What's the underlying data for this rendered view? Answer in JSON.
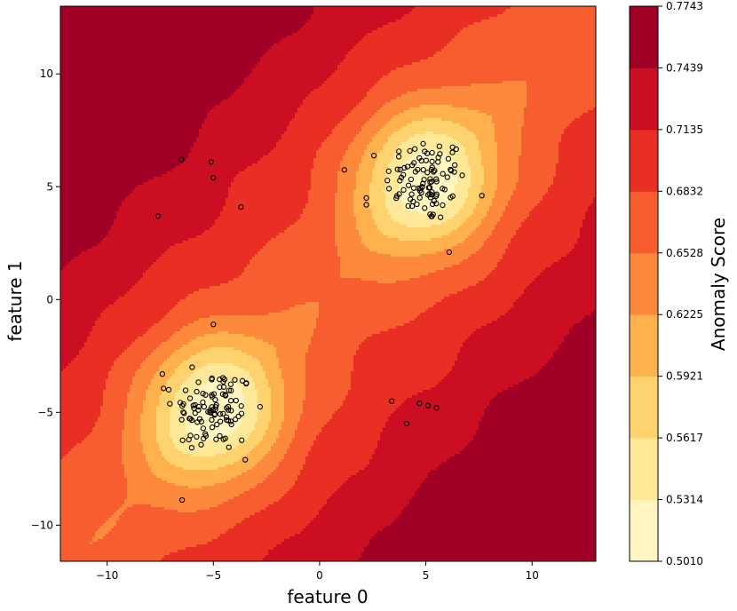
{
  "chart_data": {
    "type": "heatmap",
    "subtype": "filled-contour-with-scatter",
    "xlabel": "feature 0",
    "ylabel": "feature 1",
    "xlim": [
      -12.2,
      13
    ],
    "ylim": [
      -11.6,
      13.0
    ],
    "x_ticks": [
      -10,
      -5,
      0,
      5,
      10
    ],
    "x_tick_labels": [
      "−10",
      "−5",
      "0",
      "5",
      "10"
    ],
    "y_ticks": [
      -10,
      -5,
      0,
      5,
      10
    ],
    "y_tick_labels": [
      "−10",
      "−5",
      "0",
      "5",
      "10"
    ],
    "grid": false,
    "colorbar": {
      "label": "Anomaly Score",
      "levels": [
        0.501,
        0.5314,
        0.5617,
        0.5921,
        0.6225,
        0.6528,
        0.6832,
        0.7135,
        0.7439,
        0.7743
      ],
      "tick_labels": [
        "0.5010",
        "0.5314",
        "0.5617",
        "0.5921",
        "0.6225",
        "0.6528",
        "0.6832",
        "0.7135",
        "0.7439",
        "0.7743"
      ],
      "colors": [
        "#fff5c1",
        "#ffe999",
        "#fed36f",
        "#feb14c",
        "#fd8a3c",
        "#f85d2f",
        "#e92e23",
        "#cc0e23",
        "#a10026"
      ]
    },
    "cluster_centers": [
      [
        5.0,
        5.3
      ],
      [
        -5.0,
        -4.9
      ]
    ],
    "scatter": {
      "marker": "circle",
      "edgecolor": "#000000",
      "facecolor": "none",
      "outliers": [
        [
          -6.5,
          6.2
        ],
        [
          -5.1,
          6.1
        ],
        [
          -5.0,
          5.4
        ],
        [
          -3.7,
          4.1
        ],
        [
          -7.6,
          3.7
        ],
        [
          -5.0,
          -1.1
        ],
        [
          -7.4,
          -3.3
        ],
        [
          -7.1,
          -4.0
        ],
        [
          -6.0,
          -3.0
        ],
        [
          -3.5,
          -7.1
        ],
        [
          2.2,
          4.5
        ],
        [
          2.2,
          4.2
        ],
        [
          6.1,
          2.1
        ],
        [
          3.4,
          -4.5
        ],
        [
          4.1,
          -5.5
        ],
        [
          4.7,
          -4.6
        ],
        [
          5.1,
          -4.7
        ],
        [
          5.5,
          -4.8
        ]
      ],
      "cluster_points_per_center": 100
    }
  }
}
